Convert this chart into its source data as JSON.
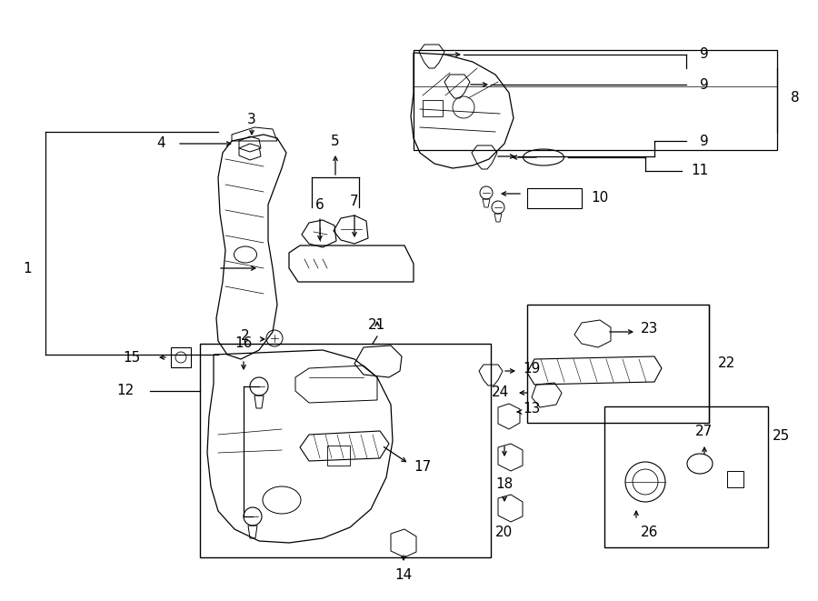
{
  "bg_color": "#ffffff",
  "line_color": "#000000",
  "fig_width": 9.0,
  "fig_height": 6.61,
  "dpi": 100,
  "lw": 0.9,
  "fs": 11
}
